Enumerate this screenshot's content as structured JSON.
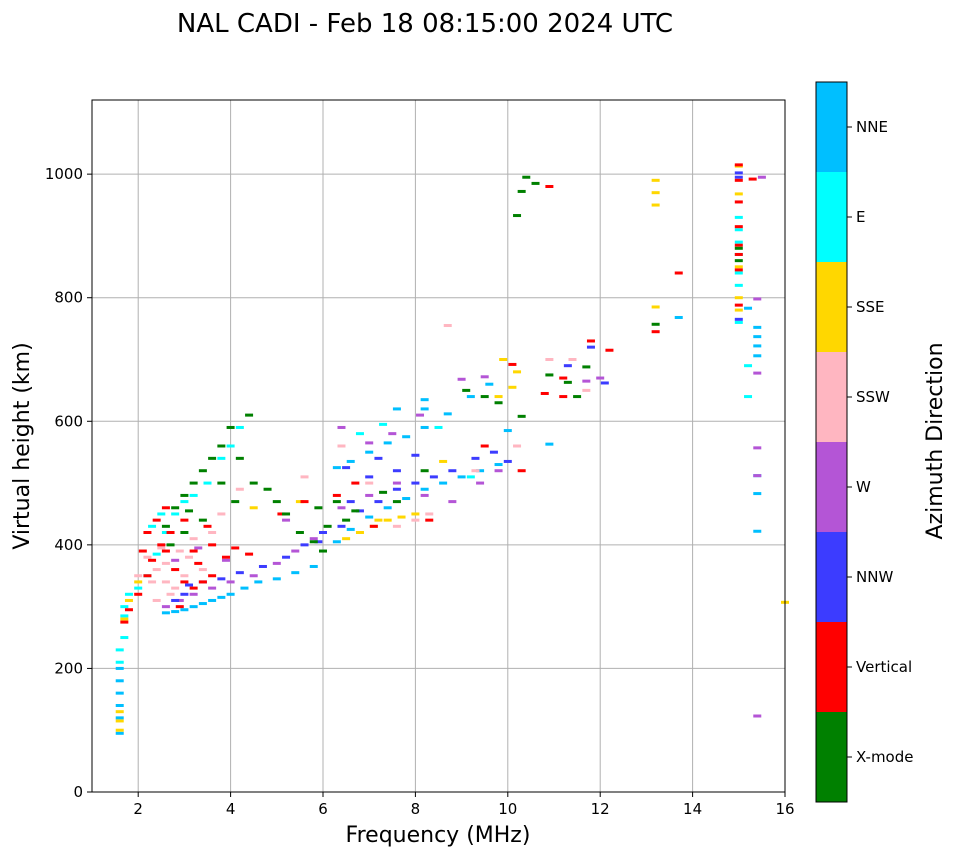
{
  "chart_data": {
    "type": "scatter",
    "title": "NAL CADI - Feb 18 08:15:00 2024 UTC",
    "xlabel": "Frequency (MHz)",
    "ylabel": "Virtual height (km)",
    "xlim": [
      1.0,
      16.0
    ],
    "ylim": [
      0,
      1120
    ],
    "xticks": [
      2,
      4,
      6,
      8,
      10,
      12,
      14,
      16
    ],
    "yticks": [
      0,
      200,
      400,
      600,
      800,
      1000
    ],
    "grid": true,
    "colorbar": {
      "title": "Azimuth Direction",
      "categories": [
        {
          "label": "X-mode",
          "color": "#008000"
        },
        {
          "label": "Vertical",
          "color": "#ff0000"
        },
        {
          "label": "NNW",
          "color": "#3c3cff"
        },
        {
          "label": "W",
          "color": "#b455d6"
        },
        {
          "label": "SSW",
          "color": "#ffb6c1"
        },
        {
          "label": "SSE",
          "color": "#ffd700"
        },
        {
          "label": "E",
          "color": "#00ffff"
        },
        {
          "label": "NNE",
          "color": "#00bfff"
        }
      ]
    },
    "series": [
      {
        "name": "NNE",
        "points": [
          [
            1.6,
            95
          ],
          [
            1.6,
            120
          ],
          [
            1.6,
            140
          ],
          [
            1.6,
            160
          ],
          [
            1.6,
            180
          ],
          [
            1.6,
            200
          ],
          [
            2.6,
            290
          ],
          [
            2.8,
            292
          ],
          [
            3.0,
            295
          ],
          [
            3.2,
            300
          ],
          [
            3.4,
            305
          ],
          [
            3.6,
            310
          ],
          [
            3.8,
            315
          ],
          [
            4.0,
            320
          ],
          [
            4.3,
            330
          ],
          [
            4.6,
            340
          ],
          [
            5.0,
            345
          ],
          [
            5.4,
            355
          ],
          [
            5.8,
            365
          ],
          [
            6.3,
            405
          ],
          [
            6.6,
            425
          ],
          [
            7.0,
            445
          ],
          [
            7.4,
            460
          ],
          [
            7.8,
            475
          ],
          [
            8.2,
            490
          ],
          [
            8.6,
            500
          ],
          [
            9.0,
            510
          ],
          [
            9.4,
            520
          ],
          [
            9.8,
            530
          ],
          [
            6.3,
            525
          ],
          [
            6.6,
            535
          ],
          [
            7.0,
            550
          ],
          [
            7.4,
            565
          ],
          [
            7.8,
            575
          ],
          [
            8.2,
            590
          ],
          [
            8.2,
            620
          ],
          [
            8.7,
            612
          ],
          [
            9.2,
            640
          ],
          [
            9.6,
            660
          ],
          [
            10.0,
            585
          ],
          [
            13.7,
            768
          ],
          [
            15.2,
            783
          ],
          [
            15.4,
            752
          ],
          [
            15.4,
            737
          ],
          [
            15.4,
            722
          ],
          [
            15.4,
            706
          ],
          [
            15.4,
            512
          ],
          [
            15.4,
            483
          ],
          [
            15.4,
            422
          ],
          [
            10.9,
            563
          ],
          [
            8.2,
            635
          ],
          [
            7.6,
            620
          ]
        ]
      },
      {
        "name": "E",
        "points": [
          [
            1.6,
            210
          ],
          [
            1.6,
            230
          ],
          [
            1.7,
            250
          ],
          [
            1.7,
            285
          ],
          [
            1.7,
            300
          ],
          [
            1.8,
            320
          ],
          [
            2.0,
            330
          ],
          [
            2.2,
            350
          ],
          [
            2.4,
            385
          ],
          [
            2.6,
            420
          ],
          [
            2.8,
            450
          ],
          [
            3.0,
            470
          ],
          [
            3.2,
            480
          ],
          [
            3.5,
            500
          ],
          [
            3.8,
            540
          ],
          [
            4.0,
            560
          ],
          [
            4.2,
            590
          ],
          [
            6.8,
            580
          ],
          [
            7.3,
            595
          ],
          [
            8.5,
            590
          ],
          [
            9.2,
            510
          ],
          [
            15.0,
            930
          ],
          [
            15.0,
            910
          ],
          [
            15.0,
            890
          ],
          [
            15.0,
            870
          ],
          [
            15.0,
            840
          ],
          [
            15.0,
            820
          ],
          [
            15.0,
            760
          ],
          [
            15.2,
            690
          ],
          [
            15.2,
            640
          ],
          [
            2.3,
            430
          ],
          [
            2.5,
            450
          ]
        ]
      },
      {
        "name": "SSE",
        "points": [
          [
            1.6,
            100
          ],
          [
            1.6,
            115
          ],
          [
            1.6,
            130
          ],
          [
            1.7,
            280
          ],
          [
            1.8,
            310
          ],
          [
            2.0,
            340
          ],
          [
            4.5,
            460
          ],
          [
            6.5,
            410
          ],
          [
            6.8,
            420
          ],
          [
            7.1,
            430
          ],
          [
            7.4,
            440
          ],
          [
            7.7,
            445
          ],
          [
            8.0,
            450
          ],
          [
            8.6,
            535
          ],
          [
            9.8,
            640
          ],
          [
            10.1,
            655
          ],
          [
            13.2,
            990
          ],
          [
            13.2,
            970
          ],
          [
            13.2,
            950
          ],
          [
            13.2,
            785
          ],
          [
            15.0,
            1013
          ],
          [
            15.0,
            968
          ],
          [
            15.0,
            850
          ],
          [
            15.0,
            800
          ],
          [
            15.0,
            780
          ],
          [
            16.0,
            307
          ],
          [
            9.9,
            700
          ],
          [
            10.2,
            680
          ],
          [
            5.5,
            470
          ],
          [
            7.2,
            440
          ]
        ]
      },
      {
        "name": "SSW",
        "points": [
          [
            2.2,
            380
          ],
          [
            2.4,
            360
          ],
          [
            2.6,
            340
          ],
          [
            2.8,
            330
          ],
          [
            3.0,
            350
          ],
          [
            2.4,
            310
          ],
          [
            2.6,
            370
          ],
          [
            2.9,
            390
          ],
          [
            3.2,
            410
          ],
          [
            2.3,
            340
          ],
          [
            2.5,
            395
          ],
          [
            2.7,
            320
          ],
          [
            3.1,
            380
          ],
          [
            3.4,
            360
          ],
          [
            2.0,
            350
          ],
          [
            3.6,
            420
          ],
          [
            3.8,
            450
          ],
          [
            4.2,
            490
          ],
          [
            5.6,
            510
          ],
          [
            6.4,
            560
          ],
          [
            7.0,
            500
          ],
          [
            7.6,
            430
          ],
          [
            8.0,
            440
          ],
          [
            8.3,
            450
          ],
          [
            8.7,
            755
          ],
          [
            9.3,
            520
          ],
          [
            10.2,
            560
          ],
          [
            10.9,
            700
          ],
          [
            11.4,
            700
          ],
          [
            11.7,
            650
          ]
        ]
      },
      {
        "name": "W",
        "points": [
          [
            2.6,
            300
          ],
          [
            2.9,
            310
          ],
          [
            3.2,
            320
          ],
          [
            3.6,
            330
          ],
          [
            4.0,
            340
          ],
          [
            4.5,
            350
          ],
          [
            5.0,
            370
          ],
          [
            5.4,
            390
          ],
          [
            5.8,
            410
          ],
          [
            6.4,
            460
          ],
          [
            7.0,
            480
          ],
          [
            7.6,
            500
          ],
          [
            8.2,
            480
          ],
          [
            8.8,
            470
          ],
          [
            9.4,
            500
          ],
          [
            9.8,
            520
          ],
          [
            6.4,
            590
          ],
          [
            7.0,
            565
          ],
          [
            7.5,
            580
          ],
          [
            8.1,
            610
          ],
          [
            9.0,
            668
          ],
          [
            9.5,
            672
          ],
          [
            11.7,
            665
          ],
          [
            12.0,
            670
          ],
          [
            15.5,
            995
          ],
          [
            15.4,
            798
          ],
          [
            15.4,
            678
          ],
          [
            15.4,
            557
          ],
          [
            15.4,
            512
          ],
          [
            15.4,
            123
          ],
          [
            2.8,
            375
          ],
          [
            3.3,
            395
          ],
          [
            3.9,
            375
          ],
          [
            5.2,
            440
          ]
        ]
      },
      {
        "name": "NNW",
        "points": [
          [
            2.8,
            310
          ],
          [
            3.0,
            320
          ],
          [
            3.4,
            340
          ],
          [
            3.8,
            345
          ],
          [
            4.2,
            355
          ],
          [
            4.7,
            365
          ],
          [
            5.2,
            380
          ],
          [
            5.6,
            400
          ],
          [
            6.0,
            420
          ],
          [
            6.4,
            430
          ],
          [
            6.8,
            455
          ],
          [
            7.2,
            470
          ],
          [
            7.6,
            490
          ],
          [
            8.0,
            500
          ],
          [
            8.4,
            510
          ],
          [
            8.8,
            520
          ],
          [
            9.3,
            540
          ],
          [
            9.7,
            550
          ],
          [
            10.0,
            535
          ],
          [
            6.6,
            470
          ],
          [
            7.0,
            510
          ],
          [
            7.6,
            520
          ],
          [
            8.0,
            545
          ],
          [
            6.5,
            525
          ],
          [
            7.2,
            540
          ],
          [
            11.3,
            690
          ],
          [
            11.8,
            720
          ],
          [
            12.1,
            662
          ],
          [
            15.0,
            1002
          ],
          [
            15.0,
            995
          ],
          [
            15.0,
            765
          ],
          [
            3.1,
            335
          ],
          [
            5.9,
            405
          ]
        ]
      },
      {
        "name": "Vertical",
        "points": [
          [
            1.7,
            275
          ],
          [
            1.8,
            295
          ],
          [
            2.0,
            320
          ],
          [
            2.2,
            350
          ],
          [
            2.3,
            375
          ],
          [
            2.5,
            400
          ],
          [
            2.7,
            420
          ],
          [
            2.6,
            390
          ],
          [
            2.8,
            360
          ],
          [
            3.0,
            340
          ],
          [
            3.2,
            330
          ],
          [
            3.4,
            340
          ],
          [
            3.6,
            350
          ],
          [
            3.3,
            370
          ],
          [
            2.9,
            300
          ],
          [
            3.2,
            390
          ],
          [
            3.6,
            400
          ],
          [
            3.9,
            380
          ],
          [
            4.4,
            385
          ],
          [
            2.4,
            440
          ],
          [
            2.6,
            460
          ],
          [
            3.0,
            440
          ],
          [
            5.1,
            450
          ],
          [
            5.6,
            470
          ],
          [
            6.3,
            480
          ],
          [
            6.7,
            500
          ],
          [
            7.1,
            430
          ],
          [
            8.3,
            440
          ],
          [
            9.5,
            560
          ],
          [
            10.3,
            520
          ],
          [
            10.1,
            692
          ],
          [
            10.8,
            645
          ],
          [
            10.9,
            980
          ],
          [
            11.2,
            670
          ],
          [
            11.2,
            640
          ],
          [
            11.8,
            730
          ],
          [
            12.2,
            715
          ],
          [
            13.2,
            745
          ],
          [
            13.7,
            840
          ],
          [
            15.0,
            1015
          ],
          [
            15.0,
            990
          ],
          [
            15.0,
            955
          ],
          [
            15.0,
            915
          ],
          [
            15.0,
            885
          ],
          [
            15.0,
            870
          ],
          [
            15.0,
            845
          ],
          [
            15.0,
            788
          ],
          [
            15.3,
            992
          ],
          [
            2.2,
            420
          ],
          [
            3.5,
            430
          ],
          [
            4.1,
            395
          ],
          [
            2.1,
            390
          ]
        ]
      },
      {
        "name": "X-mode",
        "points": [
          [
            2.6,
            430
          ],
          [
            2.8,
            460
          ],
          [
            3.0,
            480
          ],
          [
            3.2,
            500
          ],
          [
            3.4,
            520
          ],
          [
            3.6,
            540
          ],
          [
            3.8,
            560
          ],
          [
            4.0,
            590
          ],
          [
            4.4,
            610
          ],
          [
            4.2,
            540
          ],
          [
            4.5,
            500
          ],
          [
            4.8,
            490
          ],
          [
            5.0,
            470
          ],
          [
            5.2,
            450
          ],
          [
            5.5,
            420
          ],
          [
            5.8,
            405
          ],
          [
            6.0,
            390
          ],
          [
            3.4,
            440
          ],
          [
            3.0,
            420
          ],
          [
            3.8,
            500
          ],
          [
            4.1,
            470
          ],
          [
            6.3,
            470
          ],
          [
            6.5,
            440
          ],
          [
            6.7,
            455
          ],
          [
            7.3,
            485
          ],
          [
            7.6,
            470
          ],
          [
            8.2,
            520
          ],
          [
            9.1,
            650
          ],
          [
            9.5,
            640
          ],
          [
            9.8,
            630
          ],
          [
            10.2,
            933
          ],
          [
            10.3,
            608
          ],
          [
            10.3,
            972
          ],
          [
            10.4,
            995
          ],
          [
            10.6,
            985
          ],
          [
            10.9,
            675
          ],
          [
            11.3,
            663
          ],
          [
            11.5,
            640
          ],
          [
            11.7,
            688
          ],
          [
            13.2,
            757
          ],
          [
            15.0,
            880
          ],
          [
            15.0,
            860
          ],
          [
            5.9,
            460
          ],
          [
            6.1,
            430
          ],
          [
            2.7,
            400
          ],
          [
            3.1,
            455
          ]
        ]
      }
    ]
  }
}
